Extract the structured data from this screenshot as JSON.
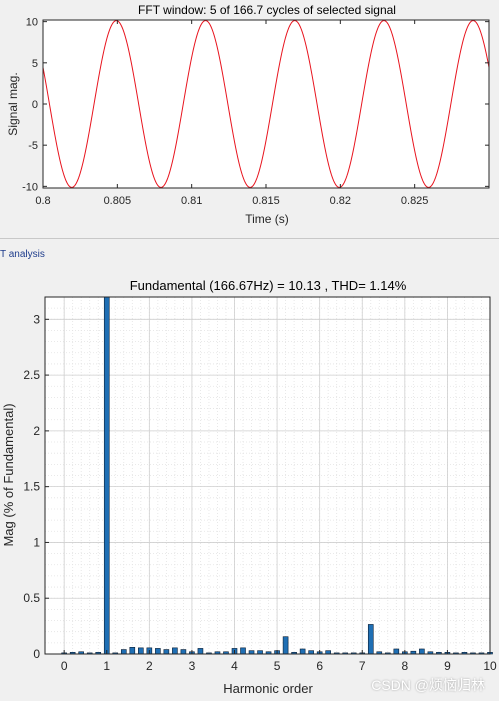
{
  "panel": {
    "tab_label": "T analysis"
  },
  "watermark": "CSDN @烦恼归林",
  "colors": {
    "signal": "#e8141e",
    "bar": "#1f6fb4",
    "grid": "#d8d8d8",
    "axes": "#262626"
  },
  "chart_data": [
    {
      "type": "line",
      "title": "FFT window: 5 of 166.7 cycles of selected signal",
      "xlabel": "Time (s)",
      "ylabel": "Signal mag.",
      "xlim": [
        0.8,
        0.83
      ],
      "ylim": [
        -10.2,
        10.2
      ],
      "xticks": [
        0.8,
        0.805,
        0.81,
        0.815,
        0.82,
        0.825
      ],
      "xtick_labels": [
        "0.8",
        "0.805",
        "0.81",
        "0.815",
        "0.82",
        "0.825"
      ],
      "yticks": [
        10,
        5,
        0,
        -5,
        -10
      ],
      "ytick_labels": [
        "10",
        "5",
        "0",
        "-5",
        "-10"
      ],
      "grid": false,
      "series": [
        {
          "amplitude": 10.13,
          "frequency_hz": 166.67,
          "phase_deg": 33,
          "color": "#e8141e"
        }
      ]
    },
    {
      "type": "bar",
      "title": "Fundamental (166.67Hz) = 10.13 , THD= 1.14%",
      "xlabel": "Harmonic order",
      "ylabel": "Mag (% of Fundamental)",
      "xlim": [
        -0.45,
        10
      ],
      "ylim": [
        0,
        3.2
      ],
      "xticks": [
        0,
        1,
        2,
        3,
        4,
        5,
        6,
        7,
        8,
        9,
        10
      ],
      "xtick_labels": [
        "0",
        "1",
        "2",
        "3",
        "4",
        "5",
        "6",
        "7",
        "8",
        "9",
        "10"
      ],
      "yticks": [
        0,
        0.5,
        1,
        1.5,
        2,
        2.5,
        3
      ],
      "ytick_labels": [
        "0",
        "0.5",
        "1",
        "1.5",
        "2",
        "2.5",
        "3"
      ],
      "grid": true,
      "bar_color": "#1f6fb4",
      "x": [
        0,
        0.2,
        0.4,
        0.6,
        0.8,
        1.0,
        1.2,
        1.4,
        1.6,
        1.8,
        2.0,
        2.2,
        2.4,
        2.6,
        2.8,
        3.0,
        3.2,
        3.4,
        3.6,
        3.8,
        4.0,
        4.2,
        4.4,
        4.6,
        4.8,
        5.0,
        5.2,
        5.4,
        5.6,
        5.8,
        6.0,
        6.2,
        6.4,
        6.6,
        6.8,
        7.0,
        7.2,
        7.4,
        7.6,
        7.8,
        8.0,
        8.2,
        8.4,
        8.6,
        8.8,
        9.0,
        9.2,
        9.4,
        9.6,
        9.8,
        10.0
      ],
      "values": [
        0.01,
        0.015,
        0.02,
        0.01,
        0.015,
        3.2,
        0.01,
        0.04,
        0.06,
        0.055,
        0.055,
        0.05,
        0.04,
        0.055,
        0.04,
        0.02,
        0.05,
        0.01,
        0.02,
        0.02,
        0.05,
        0.055,
        0.03,
        0.03,
        0.02,
        0.03,
        0.155,
        0.015,
        0.045,
        0.03,
        0.02,
        0.03,
        0.01,
        0.01,
        0.01,
        0.01,
        0.265,
        0.02,
        0.01,
        0.045,
        0.02,
        0.025,
        0.045,
        0.02,
        0.015,
        0.015,
        0.01,
        0.015,
        0.01,
        0.01,
        0.015
      ]
    }
  ]
}
